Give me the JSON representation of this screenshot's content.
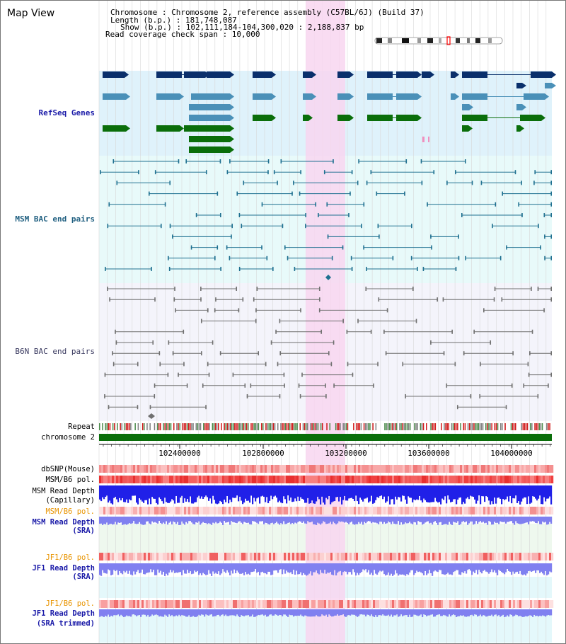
{
  "title": "Map View",
  "info": {
    "lines": [
      "Chromosome     : Chromosome 2, reference assembly (C57BL/6J) (Build 37)",
      "Length (b.p.) : 181,748,087",
      "Show (b.p.) : 102,111,184-104,300,020 : 2,188,837 bp",
      "Read coverage check span : 10,000"
    ]
  },
  "tracks": {
    "refseq": "RefSeq Genes",
    "msm_bac": "MSM BAC end pairs",
    "b6n_bac": "B6N BAC end pairs",
    "repeat": "Repeat",
    "chromosome": "chromosome 2",
    "dbsnp": "dbSNP(Mouse)",
    "msm_b6_pol_1": "MSM/B6 pol.",
    "msm_read_depth_cap_1": "MSM Read Depth",
    "msm_read_depth_cap_2": "(Capillary)",
    "msm_b6_pol_2": "MSM/B6 pol.",
    "msm_read_depth_sra_1": "MSM Read Depth",
    "msm_read_depth_sra_2": "(SRA)",
    "jf1_b6_pol_1": "JF1/B6 pol.",
    "jf1_read_depth_sra_1": "JF1 Read Depth",
    "jf1_read_depth_sra_2": "(SRA)",
    "jf1_b6_pol_2": "JF1/B6 pol.",
    "jf1_read_depth_trim_1": "JF1 Read Depth",
    "jf1_read_depth_trim_2": "(SRA trimmed)"
  },
  "axis_ticks": [
    "102400000",
    "102800000",
    "103200000",
    "103600000",
    "104000000"
  ],
  "colors": {
    "refseq_bg": "#dff2fb",
    "msm_bg": "#e8fafa",
    "b6n_bg": "#f4f4fb",
    "highlight": "#f8d6f0",
    "gene_dark": "#0a2f6b",
    "gene_mid": "#4a90b8",
    "gene_green": "#0a6e0a",
    "bac_teal": "#1f7090",
    "bac_gray": "#707070",
    "depth_blue": "#2020e8",
    "depth_violet": "#8080f0",
    "label_blue": "#1a1aa8",
    "label_orange": "#e89400"
  }
}
